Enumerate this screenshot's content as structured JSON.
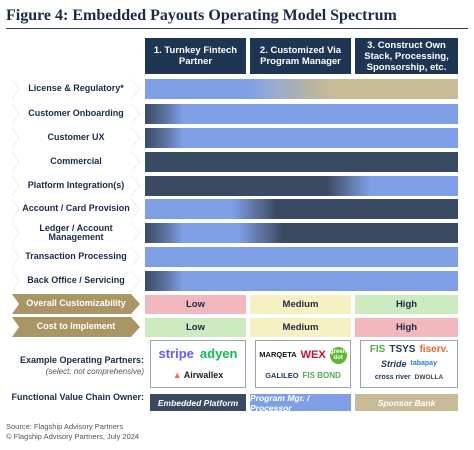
{
  "title": "Figure 4: Embedded Payouts Operating Model Spectrum",
  "columns": [
    "1. Turnkey Fintech Partner",
    "2. Customized Via Program Manager",
    "3. Construct Own Stack, Processing, Sponsorship, etc."
  ],
  "rows": [
    "License & Regulatory*",
    "Customer Onboarding",
    "Customer UX",
    "Commercial",
    "Platform Integration(s)",
    "Account / Card Provision",
    "Ledger / Account Management",
    "Transaction Processing",
    "Back Office / Servicing"
  ],
  "summary_rows": [
    {
      "label": "Overall Customizability",
      "values": [
        "Low",
        "Medium",
        "High"
      ]
    },
    {
      "label": "Cost to Implement",
      "values": [
        "Low",
        "Medium",
        "High"
      ]
    }
  ],
  "partners": {
    "label": "Example Operating Partners:",
    "sublabel": "(select, not comprehensive)",
    "col1": [
      "stripe",
      "adyen",
      "Airwallex"
    ],
    "col2": [
      "MARQETA",
      "WEX",
      "green dot",
      "GALILEO",
      "FIS BOND"
    ],
    "col3": [
      "FIS",
      "TSYS",
      "fiserv.",
      "Stride",
      "tabapay",
      "cross river",
      "DWOLLA"
    ]
  },
  "fvc": {
    "label": "Functional Value Chain Owner:",
    "values": [
      "Embedded Platform",
      "Program Mgr. / Processor",
      "Sponsor Bank"
    ]
  },
  "source": [
    "Source: Flagship Advisory Partners",
    "© Flagship Advisory Partners, July 2024"
  ],
  "colors": {
    "navy": "#1f3554",
    "dark_slate": "#3b4a63",
    "blue": "#7e9ee6",
    "tan": "#c9bb97",
    "gold": "#a99664",
    "red_cell": "#f2b8bd",
    "yellow_cell": "#f6f1c3",
    "green_cell": "#cdeac1"
  }
}
